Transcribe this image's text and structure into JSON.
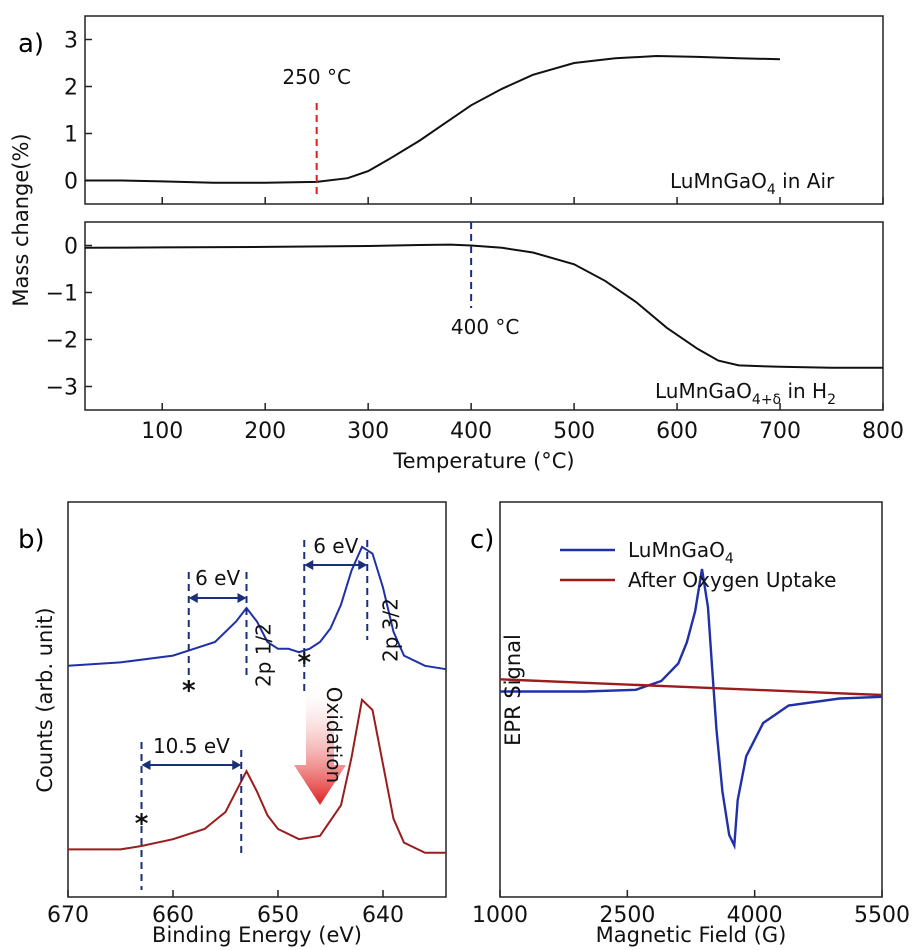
{
  "chart_data": [
    {
      "panel": "a)",
      "type": "line",
      "ylabel": "Mass change(%)",
      "xlabel": "Temperature (°C)",
      "x_ticks": [
        "100",
        "200",
        "300",
        "400",
        "500",
        "600",
        "700",
        "800"
      ],
      "xlim": [
        25,
        800
      ],
      "subplots": [
        {
          "name": "top",
          "ylim": [
            -0.5,
            3.5
          ],
          "y_ticks": [
            "0",
            "1",
            "2",
            "3"
          ],
          "legend_text": "LuMnGaO",
          "legend_sub": "4",
          "legend_suffix": " in Air",
          "series": [
            {
              "color": "#111111",
              "x": [
                25,
                60,
                100,
                150,
                200,
                250,
                280,
                300,
                320,
                350,
                380,
                400,
                430,
                460,
                500,
                540,
                580,
                620,
                660,
                700
              ],
              "y": [
                0,
                0,
                -0.02,
                -0.05,
                -0.05,
                -0.03,
                0.05,
                0.2,
                0.45,
                0.85,
                1.3,
                1.6,
                1.95,
                2.25,
                2.5,
                2.6,
                2.65,
                2.63,
                2.6,
                2.58
              ]
            }
          ],
          "marker": {
            "x": 250,
            "label": "250 °C",
            "color": "#d9201c"
          }
        },
        {
          "name": "bottom",
          "ylim": [
            -3.5,
            0.5
          ],
          "y_ticks": [
            "0",
            "−1",
            "−2",
            "−3"
          ],
          "legend_text": "LuMnGaO",
          "legend_sub": "4+δ",
          "legend_suffix": " in H",
          "legend_sub2": "2",
          "series": [
            {
              "color": "#111111",
              "x": [
                25,
                100,
                200,
                300,
                350,
                380,
                400,
                430,
                460,
                500,
                530,
                560,
                590,
                620,
                640,
                660,
                700,
                750,
                800
              ],
              "y": [
                -0.05,
                -0.04,
                -0.03,
                -0.01,
                0.01,
                0.02,
                0.0,
                -0.05,
                -0.15,
                -0.4,
                -0.75,
                -1.2,
                -1.75,
                -2.2,
                -2.45,
                -2.55,
                -2.58,
                -2.6,
                -2.6
              ]
            }
          ],
          "marker": {
            "x": 400,
            "label": "400 °C",
            "color": "#1a2f7a"
          }
        }
      ]
    },
    {
      "panel": "b)",
      "type": "line",
      "xlabel": "Binding Energy (eV)",
      "ylabel": "Counts (arb. unit)",
      "x_ticks": [
        "670",
        "660",
        "650",
        "640"
      ],
      "xlim": [
        670,
        634
      ],
      "ylim": [
        0,
        10
      ],
      "series": [
        {
          "color": "#2030a8",
          "x": [
            670,
            665,
            660,
            658,
            656,
            654,
            653,
            652,
            651,
            650,
            649,
            648,
            647,
            646,
            645,
            644,
            643,
            642,
            641,
            640,
            639,
            638,
            636,
            634
          ],
          "y": [
            6.3,
            6.4,
            6.6,
            6.8,
            7.0,
            7.6,
            8.0,
            7.6,
            7.0,
            6.8,
            6.8,
            6.7,
            6.8,
            7.0,
            7.4,
            8.1,
            9.1,
            9.8,
            9.6,
            8.6,
            7.3,
            6.6,
            6.3,
            6.2
          ]
        },
        {
          "color": "#9b1c1c",
          "x": [
            670,
            665,
            663,
            660,
            657,
            655,
            654,
            653,
            652,
            651,
            650,
            648,
            646,
            644,
            643,
            642,
            641,
            640,
            639,
            638,
            636,
            634
          ],
          "y": [
            0.9,
            0.9,
            1.0,
            1.2,
            1.5,
            2.0,
            2.6,
            3.2,
            2.6,
            1.9,
            1.5,
            1.2,
            1.3,
            2.2,
            3.6,
            5.3,
            5.0,
            3.4,
            1.8,
            1.1,
            0.8,
            0.8
          ]
        }
      ],
      "annotations": {
        "blue_gap1": "6 eV",
        "blue_gap2": "6 eV",
        "red_gap": "10.5 eV",
        "peak_label1": "2p 1/2",
        "peak_label2": "2p 3/2",
        "arrow_label": "Oxidation",
        "satellite": "*"
      }
    },
    {
      "panel": "c)",
      "type": "line",
      "xlabel": "Magnetic Field (G)",
      "ylabel": "EPR Signal",
      "x_ticks": [
        "1000",
        "2500",
        "4000",
        "5500"
      ],
      "xlim": [
        1000,
        5500
      ],
      "ylim": [
        -10,
        10
      ],
      "legend": [
        {
          "name": "LuMnGaO",
          "sub": "4",
          "color": "#2030a8"
        },
        {
          "name": "After Oxygen Uptake",
          "sub": "",
          "color": "#9b1c1c"
        }
      ],
      "series": [
        {
          "name": "LuMnGaO4",
          "color": "#2030a8",
          "x": [
            1000,
            2000,
            2600,
            2900,
            3100,
            3200,
            3300,
            3380,
            3450,
            3500,
            3550,
            3620,
            3700,
            3760,
            3800,
            3900,
            4100,
            4400,
            5000,
            5500
          ],
          "y": [
            0.2,
            0.2,
            0.3,
            0.8,
            1.8,
            3.0,
            4.8,
            7.2,
            5.0,
            1.5,
            -2.0,
            -5.5,
            -8.0,
            -8.6,
            -6.0,
            -3.5,
            -1.6,
            -0.6,
            -0.2,
            -0.1
          ]
        },
        {
          "name": "After Oxygen Uptake",
          "color": "#9b1c1c",
          "x": [
            1000,
            2000,
            3000,
            4000,
            5000,
            5500
          ],
          "y": [
            0.9,
            0.7,
            0.5,
            0.3,
            0.1,
            0.0
          ]
        }
      ]
    }
  ]
}
